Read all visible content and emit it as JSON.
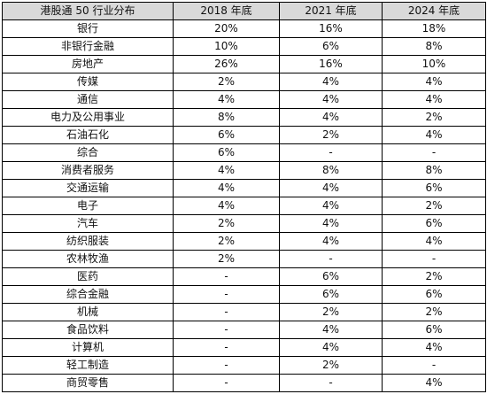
{
  "table": {
    "headers": [
      "港股通 50 行业分布",
      "2018 年底",
      "2021 年底",
      "2024 年底"
    ],
    "rows": [
      [
        "银行",
        "20%",
        "16%",
        "18%"
      ],
      [
        "非银行金融",
        "10%",
        "6%",
        "8%"
      ],
      [
        "房地产",
        "26%",
        "16%",
        "10%"
      ],
      [
        "传媒",
        "2%",
        "4%",
        "4%"
      ],
      [
        "通信",
        "4%",
        "4%",
        "4%"
      ],
      [
        "电力及公用事业",
        "8%",
        "4%",
        "2%"
      ],
      [
        "石油石化",
        "6%",
        "2%",
        "4%"
      ],
      [
        "综合",
        "6%",
        "-",
        "-"
      ],
      [
        "消费者服务",
        "4%",
        "8%",
        "8%"
      ],
      [
        "交通运输",
        "4%",
        "4%",
        "6%"
      ],
      [
        "电子",
        "4%",
        "4%",
        "2%"
      ],
      [
        "汽车",
        "2%",
        "4%",
        "6%"
      ],
      [
        "纺织服装",
        "2%",
        "4%",
        "4%"
      ],
      [
        "农林牧渔",
        "2%",
        "-",
        "-"
      ],
      [
        "医药",
        "-",
        "6%",
        "2%"
      ],
      [
        "综合金融",
        "-",
        "6%",
        "6%"
      ],
      [
        "机械",
        "-",
        "2%",
        "2%"
      ],
      [
        "食品饮料",
        "-",
        "4%",
        "6%"
      ],
      [
        "计算机",
        "-",
        "4%",
        "4%"
      ],
      [
        "轻工制造",
        "-",
        "2%",
        "-"
      ],
      [
        "商贸零售",
        "-",
        "-",
        "4%"
      ]
    ]
  },
  "colors": {
    "header_background": "#d9d9d9",
    "border": "#000000"
  }
}
